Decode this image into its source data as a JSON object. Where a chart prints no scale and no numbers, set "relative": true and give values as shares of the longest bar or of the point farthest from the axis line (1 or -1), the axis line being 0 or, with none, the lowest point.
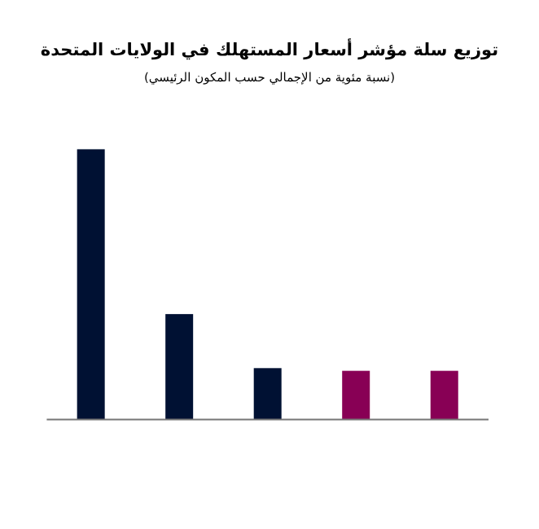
{
  "chart_data": {
    "type": "bar",
    "title": "توزيع سلة مؤشر أسعار المستهلك في الولايات المتحدة",
    "subtitle": "(نسبة مئوية من الإجمالي حسب المكون الرئيسي)",
    "relative": true,
    "categories": [
      null,
      null,
      null,
      null,
      null
    ],
    "values": [
      1,
      0.39,
      0.19,
      0.18,
      0.18
    ],
    "colors": [
      "#001133",
      "#001133",
      "#001133",
      "#880055",
      "#880055"
    ]
  }
}
